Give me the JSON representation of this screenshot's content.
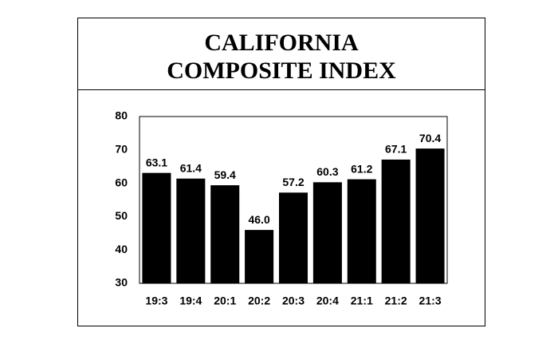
{
  "chart_data": {
    "type": "bar",
    "title": "CALIFORNIA COMPOSITE INDEX",
    "categories": [
      "19:3",
      "19:4",
      "20:1",
      "20:2",
      "20:3",
      "20:4",
      "21:1",
      "21:2",
      "21:3"
    ],
    "values": [
      63.1,
      61.4,
      59.4,
      46.0,
      57.2,
      60.3,
      61.2,
      67.1,
      70.4
    ],
    "value_labels": [
      "63.1",
      "61.4",
      "59.4",
      "46.0",
      "57.2",
      "60.3",
      "61.2",
      "67.1",
      "70.4"
    ],
    "color": "#000000",
    "ylim": [
      30,
      80
    ],
    "yticks": [
      30,
      40,
      50,
      60,
      70,
      80
    ],
    "grid": false
  }
}
